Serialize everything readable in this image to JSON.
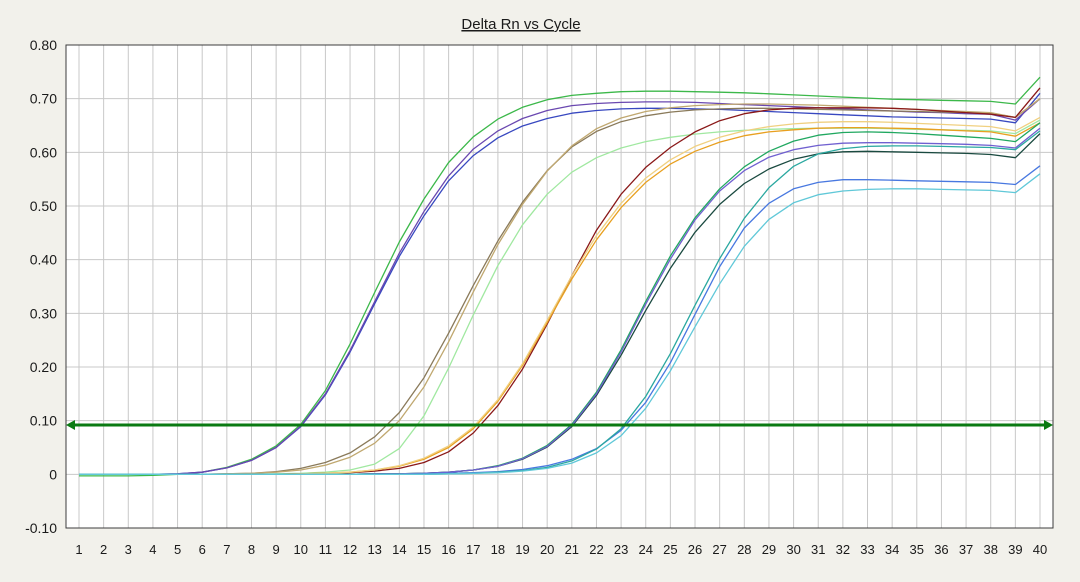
{
  "chart_data": {
    "type": "line",
    "title": "Delta Rn vs Cycle",
    "xlabel": "",
    "ylabel": "",
    "x": [
      1,
      2,
      3,
      4,
      5,
      6,
      7,
      8,
      9,
      10,
      11,
      12,
      13,
      14,
      15,
      16,
      17,
      18,
      19,
      20,
      21,
      22,
      23,
      24,
      25,
      26,
      27,
      28,
      29,
      30,
      31,
      32,
      33,
      34,
      35,
      36,
      37,
      38,
      39,
      40
    ],
    "xlim": [
      1,
      40
    ],
    "ylim": [
      -0.1,
      0.8
    ],
    "yticks": [
      "-0.10",
      "0",
      "0.10",
      "0.20",
      "0.30",
      "0.40",
      "0.50",
      "0.60",
      "0.70",
      "0.80"
    ],
    "xticks": [
      "1",
      "2",
      "3",
      "4",
      "5",
      "6",
      "7",
      "8",
      "9",
      "10",
      "11",
      "12",
      "13",
      "14",
      "15",
      "16",
      "17",
      "18",
      "19",
      "20",
      "21",
      "22",
      "23",
      "24",
      "25",
      "26",
      "27",
      "28",
      "29",
      "30",
      "31",
      "32",
      "33",
      "34",
      "35",
      "36",
      "37",
      "38",
      "39",
      "40"
    ],
    "grid": true,
    "threshold": 0.092,
    "colors": {
      "plot_bg": "#ffffff",
      "grid": "#c8c8c8",
      "threshold": "#0a7a12",
      "frame": "#3c3c3c"
    },
    "series": [
      {
        "color": "#3cb84a",
        "values": [
          -0.003,
          -0.003,
          -0.003,
          -0.002,
          0.0,
          0.004,
          0.013,
          0.028,
          0.053,
          0.093,
          0.156,
          0.243,
          0.339,
          0.433,
          0.513,
          0.581,
          0.629,
          0.662,
          0.684,
          0.698,
          0.706,
          0.71,
          0.713,
          0.714,
          0.714,
          0.713,
          0.712,
          0.711,
          0.709,
          0.707,
          0.705,
          0.703,
          0.701,
          0.699,
          0.698,
          0.697,
          0.696,
          0.695,
          0.69,
          0.74
        ]
      },
      {
        "color": "#3848c0",
        "values": [
          0.0,
          0.0,
          0.0,
          0.0,
          0.001,
          0.004,
          0.012,
          0.026,
          0.05,
          0.089,
          0.148,
          0.228,
          0.318,
          0.406,
          0.482,
          0.547,
          0.594,
          0.627,
          0.649,
          0.663,
          0.673,
          0.678,
          0.681,
          0.682,
          0.682,
          0.681,
          0.68,
          0.678,
          0.676,
          0.674,
          0.672,
          0.67,
          0.668,
          0.666,
          0.665,
          0.664,
          0.663,
          0.662,
          0.655,
          0.71
        ]
      },
      {
        "color": "#6a48b0",
        "values": [
          0.0,
          0.0,
          0.0,
          0.0,
          0.001,
          0.004,
          0.012,
          0.026,
          0.05,
          0.09,
          0.15,
          0.231,
          0.322,
          0.412,
          0.49,
          0.556,
          0.606,
          0.64,
          0.663,
          0.678,
          0.687,
          0.691,
          0.693,
          0.694,
          0.694,
          0.693,
          0.691,
          0.689,
          0.687,
          0.685,
          0.683,
          0.681,
          0.679,
          0.677,
          0.675,
          0.674,
          0.672,
          0.671,
          0.66,
          0.7
        ]
      },
      {
        "color": "#8a7a5a",
        "values": [
          0.0,
          0.0,
          0.0,
          0.0,
          0.0,
          0.0,
          0.001,
          0.002,
          0.005,
          0.011,
          0.022,
          0.04,
          0.07,
          0.115,
          0.18,
          0.263,
          0.352,
          0.435,
          0.507,
          0.566,
          0.61,
          0.639,
          0.657,
          0.668,
          0.675,
          0.679,
          0.681,
          0.682,
          0.682,
          0.681,
          0.68,
          0.679,
          0.678,
          0.677,
          0.676,
          0.675,
          0.674,
          0.673,
          0.665,
          0.7
        ]
      },
      {
        "color": "#c0a870",
        "values": [
          0.0,
          0.0,
          0.0,
          0.0,
          0.0,
          0.0,
          0.001,
          0.002,
          0.004,
          0.008,
          0.017,
          0.032,
          0.058,
          0.1,
          0.163,
          0.247,
          0.34,
          0.428,
          0.503,
          0.565,
          0.612,
          0.644,
          0.664,
          0.676,
          0.683,
          0.687,
          0.689,
          0.69,
          0.69,
          0.689,
          0.688,
          0.686,
          0.684,
          0.682,
          0.68,
          0.678,
          0.676,
          0.674,
          0.665,
          0.7
        ]
      },
      {
        "color": "#a0e8a0",
        "values": [
          0.0,
          0.0,
          0.0,
          0.0,
          0.0,
          0.0,
          0.0,
          0.0,
          0.001,
          0.002,
          0.004,
          0.008,
          0.019,
          0.048,
          0.109,
          0.198,
          0.297,
          0.389,
          0.465,
          0.522,
          0.563,
          0.59,
          0.608,
          0.62,
          0.628,
          0.634,
          0.638,
          0.641,
          0.643,
          0.644,
          0.645,
          0.645,
          0.645,
          0.644,
          0.643,
          0.642,
          0.641,
          0.64,
          0.635,
          0.66
        ]
      },
      {
        "color": "#8a1818",
        "values": [
          0.0,
          0.0,
          0.0,
          0.0,
          0.0,
          0.0,
          0.0,
          0.0,
          0.0,
          0.001,
          0.002,
          0.003,
          0.006,
          0.011,
          0.022,
          0.042,
          0.077,
          0.128,
          0.196,
          0.28,
          0.37,
          0.455,
          0.522,
          0.572,
          0.609,
          0.638,
          0.659,
          0.672,
          0.679,
          0.682,
          0.683,
          0.683,
          0.683,
          0.682,
          0.68,
          0.677,
          0.674,
          0.671,
          0.665,
          0.72
        ]
      },
      {
        "color": "#e8a020",
        "values": [
          0.0,
          0.0,
          0.0,
          0.0,
          0.0,
          0.0,
          0.0,
          0.0,
          0.0,
          0.001,
          0.002,
          0.004,
          0.008,
          0.015,
          0.028,
          0.05,
          0.085,
          0.136,
          0.203,
          0.283,
          0.364,
          0.437,
          0.497,
          0.544,
          0.578,
          0.602,
          0.619,
          0.631,
          0.638,
          0.642,
          0.645,
          0.646,
          0.646,
          0.645,
          0.644,
          0.642,
          0.64,
          0.638,
          0.63,
          0.655
        ]
      },
      {
        "color": "#f0d080",
        "values": [
          0.0,
          0.0,
          0.0,
          0.0,
          0.0,
          0.0,
          0.0,
          0.0,
          0.0,
          0.001,
          0.002,
          0.004,
          0.008,
          0.016,
          0.03,
          0.053,
          0.088,
          0.139,
          0.206,
          0.287,
          0.37,
          0.445,
          0.505,
          0.552,
          0.586,
          0.611,
          0.628,
          0.64,
          0.648,
          0.653,
          0.656,
          0.657,
          0.657,
          0.656,
          0.654,
          0.652,
          0.65,
          0.648,
          0.64,
          0.665
        ]
      },
      {
        "color": "#20a860",
        "values": [
          0.0,
          0.0,
          0.0,
          0.0,
          0.0,
          0.0,
          0.0,
          0.0,
          0.0,
          0.0,
          0.0,
          0.0,
          0.001,
          0.001,
          0.002,
          0.004,
          0.008,
          0.016,
          0.03,
          0.054,
          0.093,
          0.153,
          0.232,
          0.322,
          0.407,
          0.478,
          0.532,
          0.573,
          0.602,
          0.621,
          0.632,
          0.637,
          0.638,
          0.637,
          0.635,
          0.632,
          0.629,
          0.626,
          0.62,
          0.655
        ]
      },
      {
        "color": "#1a4a40",
        "values": [
          0.0,
          0.0,
          0.0,
          0.0,
          0.0,
          0.0,
          0.0,
          0.0,
          0.0,
          0.0,
          0.0,
          0.0,
          0.001,
          0.001,
          0.002,
          0.004,
          0.008,
          0.015,
          0.028,
          0.051,
          0.089,
          0.147,
          0.222,
          0.305,
          0.384,
          0.451,
          0.503,
          0.542,
          0.569,
          0.587,
          0.597,
          0.601,
          0.602,
          0.601,
          0.6,
          0.599,
          0.598,
          0.596,
          0.59,
          0.635
        ]
      },
      {
        "color": "#7060d0",
        "values": [
          0.0,
          0.0,
          0.0,
          0.0,
          0.0,
          0.0,
          0.0,
          0.0,
          0.0,
          0.0,
          0.0,
          0.0,
          0.001,
          0.001,
          0.002,
          0.004,
          0.008,
          0.015,
          0.029,
          0.052,
          0.091,
          0.15,
          0.228,
          0.317,
          0.401,
          0.474,
          0.528,
          0.566,
          0.591,
          0.605,
          0.613,
          0.617,
          0.618,
          0.618,
          0.617,
          0.616,
          0.615,
          0.613,
          0.608,
          0.645
        ]
      },
      {
        "color": "#4878e0",
        "values": [
          0.0,
          0.0,
          0.0,
          0.0,
          0.0,
          0.0,
          0.0,
          0.0,
          0.0,
          0.0,
          0.0,
          0.0,
          0.0,
          0.0,
          0.001,
          0.002,
          0.003,
          0.005,
          0.009,
          0.016,
          0.028,
          0.048,
          0.082,
          0.134,
          0.208,
          0.298,
          0.387,
          0.459,
          0.505,
          0.532,
          0.544,
          0.549,
          0.549,
          0.548,
          0.547,
          0.546,
          0.545,
          0.544,
          0.54,
          0.575
        ]
      },
      {
        "color": "#2aa8a0",
        "values": [
          0.0,
          0.0,
          0.0,
          0.0,
          0.0,
          0.0,
          0.0,
          0.0,
          0.0,
          0.0,
          0.0,
          0.0,
          0.0,
          0.0,
          0.0,
          0.001,
          0.002,
          0.004,
          0.007,
          0.013,
          0.025,
          0.047,
          0.085,
          0.145,
          0.225,
          0.315,
          0.402,
          0.477,
          0.534,
          0.574,
          0.597,
          0.607,
          0.611,
          0.612,
          0.612,
          0.611,
          0.61,
          0.609,
          0.605,
          0.64
        ]
      },
      {
        "color": "#60c8d8",
        "values": [
          0.0,
          0.0,
          0.0,
          0.0,
          0.0,
          0.0,
          0.0,
          0.0,
          0.0,
          0.0,
          0.0,
          0.0,
          0.0,
          0.0,
          0.0,
          0.001,
          0.002,
          0.003,
          0.006,
          0.011,
          0.021,
          0.04,
          0.072,
          0.123,
          0.193,
          0.275,
          0.355,
          0.425,
          0.475,
          0.506,
          0.521,
          0.528,
          0.531,
          0.532,
          0.532,
          0.531,
          0.53,
          0.529,
          0.525,
          0.56
        ]
      }
    ]
  }
}
